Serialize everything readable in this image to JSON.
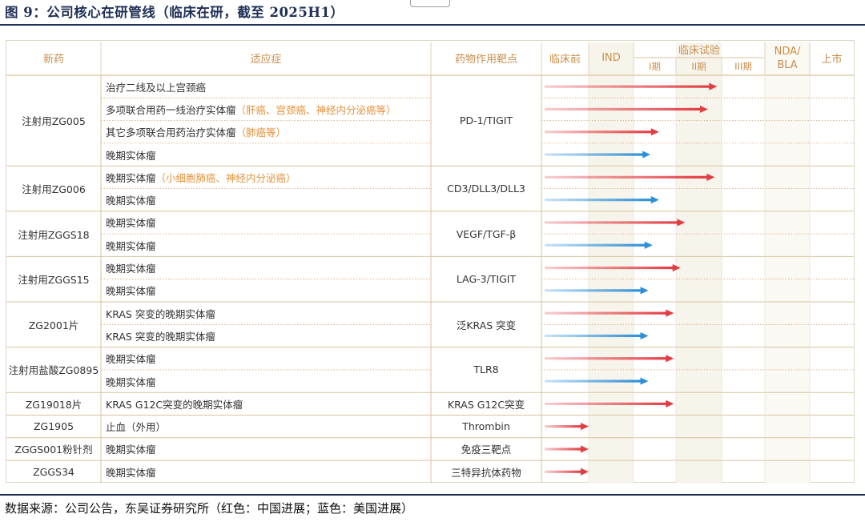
{
  "figure": {
    "title": "图 9：公司核心在研管线（临床在研，截至 2025H1）",
    "source": "数据来源：公司公告，东吴证券研究所（红色：中国进展；蓝色：美国进展）"
  },
  "table": {
    "headers": {
      "drug": "新药",
      "indication": "适应症",
      "target": "药物作用靶点",
      "preclinical": "临床前",
      "ind": "IND",
      "clinical": "临床试验",
      "phase1": "I期",
      "phase2": "II期",
      "phase3": "III期",
      "nda": "NDA/\nBLA",
      "market": "上市"
    },
    "stages": [
      "临床前",
      "IND",
      "I期",
      "II期",
      "III期",
      "NDA/BLA",
      "上市"
    ],
    "legend": {
      "cn_color": "#e23d43",
      "us_color": "#2d8fd8"
    },
    "groups": [
      {
        "drug": "注射用ZG005",
        "target": "PD-1/TIGIT",
        "rows": [
          {
            "indication": "治疗二线及以上宫颈癌",
            "note": "",
            "region": "cn",
            "progress_stage": 3.9
          },
          {
            "indication": "多项联合用药一线治疗实体瘤",
            "note": "（肝癌、宫颈癌、神经内分泌癌等）",
            "region": "cn",
            "progress_stage": 3.7
          },
          {
            "indication": "其它多项联合用药治疗实体瘤",
            "note": "（肺癌等）",
            "region": "cn",
            "progress_stage": 2.6
          },
          {
            "indication": "晚期实体瘤",
            "note": "",
            "region": "us",
            "progress_stage": 2.4
          }
        ]
      },
      {
        "drug": "注射用ZG006",
        "target": "CD3/DLL3/DLL3",
        "rows": [
          {
            "indication": "晚期实体瘤",
            "note": "（小细胞肺癌、神经内分泌癌）",
            "region": "cn",
            "progress_stage": 3.85
          },
          {
            "indication": "晚期实体瘤",
            "note": "",
            "region": "us",
            "progress_stage": 2.6
          }
        ]
      },
      {
        "drug": "注射用ZGGS18",
        "target": "VEGF/TGF-β",
        "rows": [
          {
            "indication": "晚期实体瘤",
            "note": "",
            "region": "cn",
            "progress_stage": 3.2
          },
          {
            "indication": "晚期实体瘤",
            "note": "",
            "region": "us",
            "progress_stage": 2.45
          }
        ]
      },
      {
        "drug": "注射用ZGGS15",
        "target": "LAG-3/TIGIT",
        "rows": [
          {
            "indication": "晚期实体瘤",
            "note": "",
            "region": "cn",
            "progress_stage": 3.1
          },
          {
            "indication": "晚期实体瘤",
            "note": "",
            "region": "us",
            "progress_stage": 2.35
          }
        ]
      },
      {
        "drug": "ZG2001片",
        "target": "泛KRAS 突变",
        "rows": [
          {
            "indication": "KRAS 突变的晚期实体瘤",
            "note": "",
            "region": "cn",
            "progress_stage": 2.95
          },
          {
            "indication": "KRAS 突变的晚期实体瘤",
            "note": "",
            "region": "us",
            "progress_stage": 2.35
          }
        ]
      },
      {
        "drug": "注射用盐酸ZG0895",
        "target": "TLR8",
        "rows": [
          {
            "indication": "晚期实体瘤",
            "note": "",
            "region": "cn",
            "progress_stage": 2.95
          },
          {
            "indication": "晚期实体瘤",
            "note": "",
            "region": "us",
            "progress_stage": 2.35
          }
        ]
      },
      {
        "drug": "ZG19018片",
        "target": "KRAS G12C突变",
        "rows": [
          {
            "indication": "KRAS G12C突变的晚期实体瘤",
            "note": "",
            "region": "cn",
            "progress_stage": 2.95
          }
        ]
      },
      {
        "drug": "ZG1905",
        "target": "Thrombin",
        "rows": [
          {
            "indication": "止血（外用）",
            "note": "",
            "region": "cn",
            "progress_stage": 1.0
          }
        ]
      },
      {
        "drug": "ZGGS001粉针剂",
        "target": "免疫三靶点",
        "rows": [
          {
            "indication": "晚期实体瘤",
            "note": "",
            "region": "cn",
            "progress_stage": 1.0
          }
        ]
      },
      {
        "drug": "ZGGS34",
        "target": "三特异抗体药物",
        "rows": [
          {
            "indication": "晚期实体瘤",
            "note": "",
            "region": "cn",
            "progress_stage": 1.0
          }
        ]
      }
    ]
  }
}
